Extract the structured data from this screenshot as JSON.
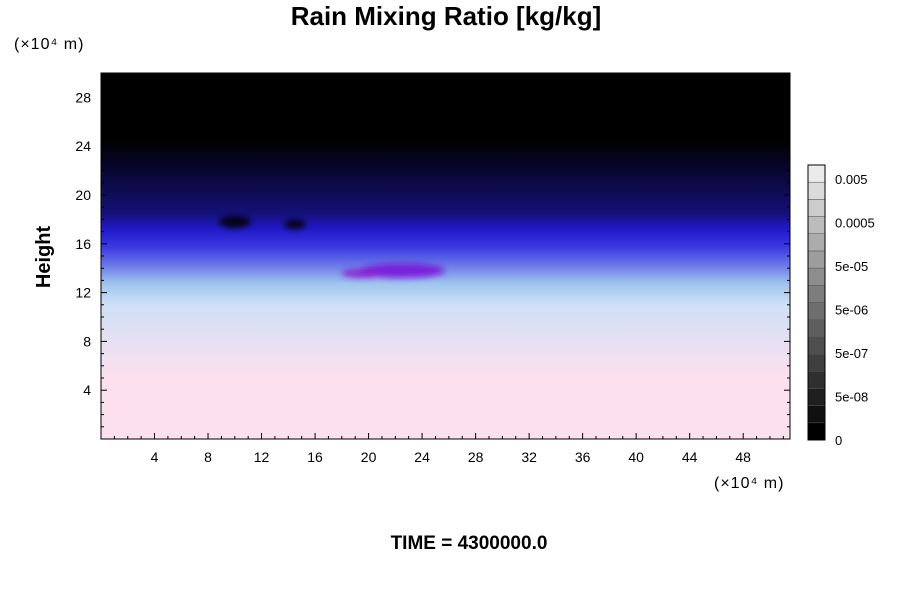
{
  "chart_data": {
    "type": "heatmap",
    "title": "Rain Mixing Ratio [kg/kg]",
    "ylabel": "Height",
    "y_unit": "(×10⁴ m)",
    "x_unit": "(×10⁴ m)",
    "x_ticks": [
      "4",
      "8",
      "12",
      "16",
      "20",
      "24",
      "28",
      "32",
      "36",
      "40",
      "44",
      "48"
    ],
    "y_ticks": [
      "4",
      "8",
      "12",
      "16",
      "20",
      "24",
      "28"
    ],
    "xlim": [
      0,
      51.5
    ],
    "ylim": [
      0,
      30
    ],
    "footer": "TIME = 4300000.0",
    "colorbar": {
      "labels": [
        "0",
        "5e-08",
        "5e-07",
        "5e-06",
        "5e-05",
        "0.0005",
        "0.005"
      ],
      "levels": 16
    },
    "bands": [
      {
        "from": 0,
        "to": 10,
        "color": "#fde0ee"
      },
      {
        "from": 10,
        "to": 12,
        "color": "#cfe0f6"
      },
      {
        "from": 12,
        "to": 13.5,
        "color": "#9fc4ec"
      },
      {
        "from": 13.5,
        "to": 15,
        "color": "#6a78e8"
      },
      {
        "from": 15,
        "to": 16.5,
        "color": "#3a38e0"
      },
      {
        "from": 16.5,
        "to": 18,
        "color": "#2018c8"
      },
      {
        "from": 18,
        "to": 19,
        "color": "#141078"
      },
      {
        "from": 19,
        "to": 30,
        "color": "#000000"
      }
    ],
    "features": [
      {
        "x": 22.5,
        "y": 13.8,
        "rx": 3.2,
        "ry": 0.6,
        "color": "#7a10d8"
      },
      {
        "x": 19.5,
        "y": 13.6,
        "rx": 1.5,
        "ry": 0.4,
        "color": "#8a20d0"
      },
      {
        "x": 10,
        "y": 17.8,
        "rx": 1.2,
        "ry": 0.5,
        "color": "#000000"
      },
      {
        "x": 14.5,
        "y": 17.6,
        "rx": 0.8,
        "ry": 0.4,
        "color": "#000000"
      }
    ]
  }
}
